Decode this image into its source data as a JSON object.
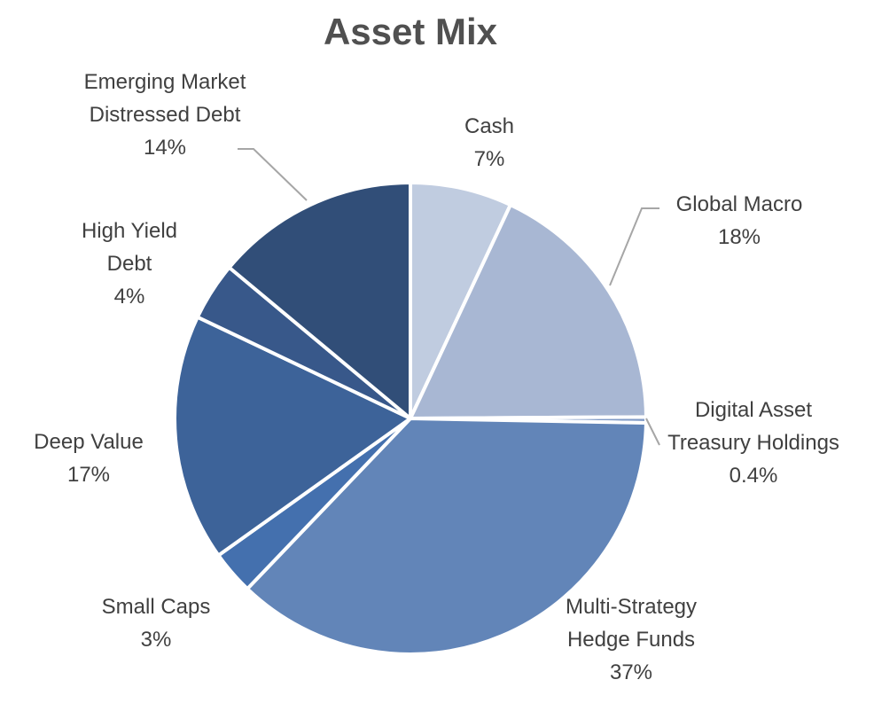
{
  "chart_data": {
    "type": "pie",
    "title": "Asset Mix",
    "slices": [
      {
        "name": "Cash",
        "display_label": [
          "Cash"
        ],
        "value": 7,
        "value_label": "7%",
        "color": "#c0cce0"
      },
      {
        "name": "Global Macro",
        "display_label": [
          "Global Macro"
        ],
        "value": 18,
        "value_label": "18%",
        "color": "#a8b7d3"
      },
      {
        "name": "Digital Asset Treasury Holdings",
        "display_label": [
          "Digital Asset",
          "Treasury Holdings"
        ],
        "value": 0.4,
        "value_label": "0.4%",
        "color": "#7f9ac6"
      },
      {
        "name": "Multi-Strategy Hedge Funds",
        "display_label": [
          "Multi-Strategy",
          "Hedge Funds"
        ],
        "value": 37,
        "value_label": "37%",
        "color": "#6285b8"
      },
      {
        "name": "Small Caps",
        "display_label": [
          "Small Caps"
        ],
        "value": 3,
        "value_label": "3%",
        "color": "#4470ae"
      },
      {
        "name": "Deep Value",
        "display_label": [
          "Deep Value"
        ],
        "value": 17,
        "value_label": "17%",
        "color": "#3d6399"
      },
      {
        "name": "High Yield Debt",
        "display_label": [
          "High Yield",
          "Debt"
        ],
        "value": 4,
        "value_label": "4%",
        "color": "#38588a"
      },
      {
        "name": "Emerging Market Distressed Debt",
        "display_label": [
          "Emerging Market",
          "Distressed Debt"
        ],
        "value": 14,
        "value_label": "14%",
        "color": "#314e78"
      }
    ],
    "start_angle_deg": 0,
    "direction": "clockwise",
    "legend": "none",
    "leader_line_color": "#a6a6a6"
  }
}
